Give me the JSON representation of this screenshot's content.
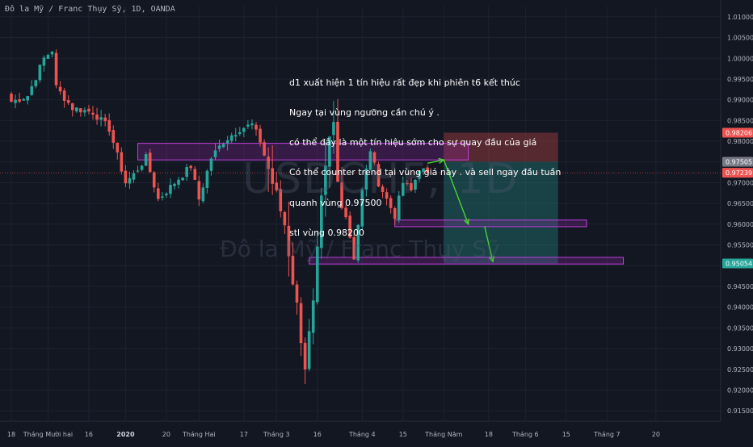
{
  "title": "Đô la Mỹ / Franc Thụy Sỹ, 1D, OANDA",
  "watermark": {
    "ticker": "USDCHF, 1D",
    "name": "Đô la Mỹ / Franc Thụy Sỹ"
  },
  "annotation": [
    "d1 xuất hiện 1 tín hiệu rất đẹp khi phiên t6 kết thúc",
    "Ngay tại vùng ngưỡng cần chú ý .",
    "có thể đây là một tín hiệu sớm cho sự quay đầu của giá",
    "Có thể counter trend tại vùng giá này . và sell ngay đầu tuần",
    "quanh vùng 0.97500",
    "stl vùng 0.98200"
  ],
  "colors": {
    "background": "#131722",
    "up": "#26a69a",
    "down": "#ef5350",
    "zone_fill": "rgba(156,39,176,0.25)",
    "zone_border": "#c040e0",
    "arrow": "#4cd137",
    "stop_zone": "rgba(239,83,80,0.30)",
    "target_zone": "rgba(38,166,154,0.30)",
    "grid": "#1e2230",
    "axis_text": "#b2b5be"
  },
  "chart_data": {
    "type": "candlestick",
    "symbol": "USDCHF",
    "timeframe": "1D",
    "broker": "OANDA",
    "ylim": [
      0.9125,
      1.0125
    ],
    "y_ticks": [
      "1.01000",
      "1.00500",
      "1.00000",
      "0.99500",
      "0.99000",
      "0.98500",
      "0.98000",
      "0.97500",
      "0.97000",
      "0.96500",
      "0.96000",
      "0.95500",
      "0.95000",
      "0.94500",
      "0.94000",
      "0.93500",
      "0.93000",
      "0.92500",
      "0.92000",
      "0.91500"
    ],
    "x_ticks": [
      {
        "label": "18",
        "index": 0
      },
      {
        "label": "Tháng Mười hai",
        "index": 9
      },
      {
        "label": "16",
        "index": 19
      },
      {
        "label": "2020",
        "index": 28
      },
      {
        "label": "20",
        "index": 38
      },
      {
        "label": "Tháng Hai",
        "index": 46
      },
      {
        "label": "17",
        "index": 57
      },
      {
        "label": "Tháng 3",
        "index": 65
      },
      {
        "label": "16",
        "index": 75
      },
      {
        "label": "Tháng 4",
        "index": 86
      },
      {
        "label": "15",
        "index": 96
      },
      {
        "label": "Tháng Năm",
        "index": 106
      },
      {
        "label": "18",
        "index": 117
      },
      {
        "label": "Tháng 6",
        "index": 126
      },
      {
        "label": "15",
        "index": 136
      },
      {
        "label": "Tháng 7",
        "index": 146
      },
      {
        "label": "20",
        "index": 158
      }
    ],
    "price_labels": [
      {
        "value": 0.98206,
        "text": "0.98206",
        "color": "#ef5350"
      },
      {
        "value": 0.97505,
        "text": "0.97505",
        "color": "#787b86"
      },
      {
        "value": 0.97239,
        "text": "0.97239",
        "color": "#ef5350"
      },
      {
        "value": 0.95054,
        "text": "0.95054",
        "color": "#26a69a"
      }
    ],
    "last_price": 0.97239,
    "anchor_closes": [
      [
        0,
        0.9895
      ],
      [
        4,
        0.991
      ],
      [
        8,
        1.0
      ],
      [
        10,
        1.002
      ],
      [
        11,
        0.993
      ],
      [
        15,
        0.988
      ],
      [
        20,
        0.987
      ],
      [
        24,
        0.983
      ],
      [
        28,
        0.97
      ],
      [
        30,
        0.972
      ],
      [
        33,
        0.976
      ],
      [
        36,
        0.966
      ],
      [
        40,
        0.97
      ],
      [
        44,
        0.974
      ],
      [
        46,
        0.966
      ],
      [
        49,
        0.976
      ],
      [
        52,
        0.98
      ],
      [
        56,
        0.983
      ],
      [
        59,
        0.984
      ],
      [
        61,
        0.98
      ],
      [
        64,
        0.97
      ],
      [
        67,
        0.96
      ],
      [
        70,
        0.94
      ],
      [
        72,
        0.926
      ],
      [
        74,
        0.94
      ],
      [
        76,
        0.965
      ],
      [
        78,
        0.98
      ],
      [
        79,
        0.984
      ],
      [
        80,
        0.97
      ],
      [
        82,
        0.962
      ],
      [
        84,
        0.952
      ],
      [
        86,
        0.968
      ],
      [
        88,
        0.978
      ],
      [
        90,
        0.97
      ],
      [
        92,
        0.966
      ],
      [
        94,
        0.962
      ],
      [
        96,
        0.97
      ],
      [
        98,
        0.968
      ],
      [
        100,
        0.9735
      ],
      [
        102,
        0.9724
      ]
    ],
    "zones": [
      {
        "name": "resistance-zone",
        "x_from": 31,
        "x_to": 112,
        "y_from": 0.9755,
        "y_to": 0.9795
      },
      {
        "name": "support-zone-1",
        "x_from": 94,
        "x_to": 141,
        "y_from": 0.9594,
        "y_to": 0.961
      },
      {
        "name": "support-zone-2",
        "x_from": 73,
        "x_to": 150,
        "y_from": 0.9504,
        "y_to": 0.952
      }
    ],
    "position": {
      "entry": 0.97505,
      "stop": 0.98206,
      "target": 0.95054,
      "x_from": 106,
      "x_to": 134
    },
    "arrows": [
      {
        "from": [
          102,
          0.9747
        ],
        "to": [
          106,
          0.9755
        ]
      },
      {
        "from": [
          106,
          0.9755
        ],
        "to": [
          112,
          0.96
        ]
      },
      {
        "from": [
          116,
          0.9595
        ],
        "to": [
          118,
          0.951
        ]
      }
    ]
  }
}
